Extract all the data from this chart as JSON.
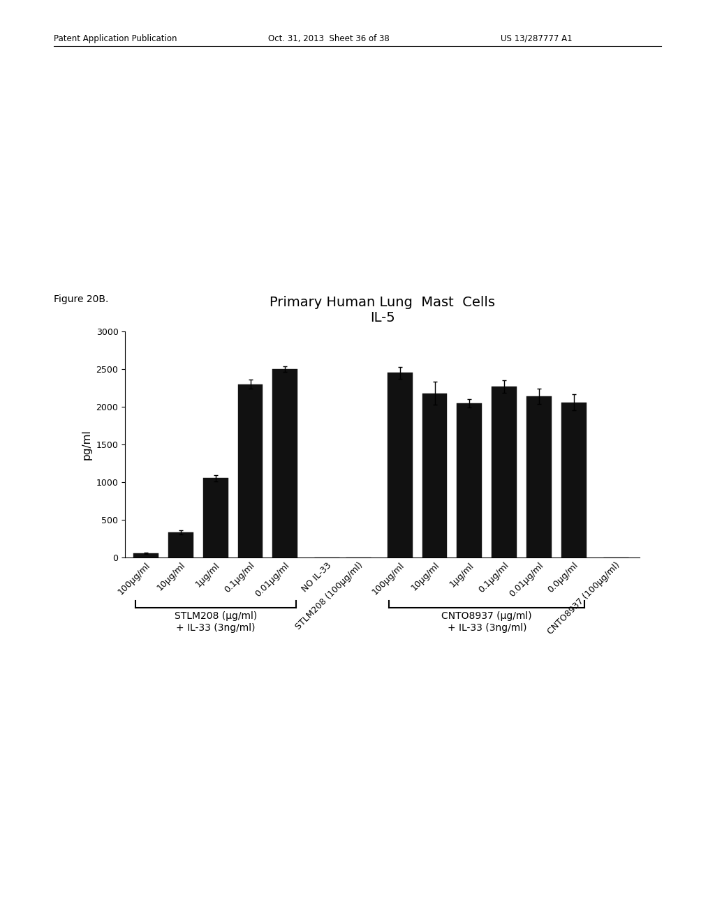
{
  "title_line1": "Primary Human Lung  Mast  Cells",
  "title_line2": "IL-5",
  "ylabel": "pg/ml",
  "ylim": [
    0,
    3000
  ],
  "yticks": [
    0,
    500,
    1000,
    1500,
    2000,
    2500,
    3000
  ],
  "bar_color": "#111111",
  "background_color": "#ffffff",
  "stlm_values": [
    50,
    330,
    1050,
    2300,
    2500
  ],
  "stlm_errors": [
    8,
    25,
    40,
    60,
    40
  ],
  "stlm_labels": [
    "100μg/ml",
    "10μg/ml",
    "1μg/ml",
    "0.1μg/ml",
    "0.01μg/ml"
  ],
  "cnto_values": [
    2450,
    2180,
    2050,
    2270,
    2140,
    2060
  ],
  "cnto_errors": [
    80,
    150,
    55,
    80,
    100,
    110
  ],
  "cnto_labels": [
    "100μg/ml",
    "10μg/ml",
    "1μg/ml",
    "0.1μg/ml",
    "0.01μg/ml",
    "0.0μg/ml"
  ],
  "no_il33_label": "NO IL-33",
  "stlm208_sep_label": "STLM208 (100μg/ml)",
  "cnto8937_sep_label": "CNTO8937 (100μg/ml)",
  "group_label_stlm_line1": "STLM208 (μg/ml)",
  "group_label_stlm_line2": "+ IL-33 (3ng/ml)",
  "group_label_cnto_line1": "CNTO8937 (μg/ml)",
  "group_label_cnto_line2": "+ IL-33 (3ng/ml)",
  "figure_label": "Figure 20B.",
  "header_left": "Patent Application Publication",
  "header_mid": "Oct. 31, 2013  Sheet 36 of 38",
  "header_right": "US 13/287777 A1",
  "title_fontsize": 14,
  "axis_label_fontsize": 11,
  "tick_fontsize": 9,
  "group_label_fontsize": 10
}
